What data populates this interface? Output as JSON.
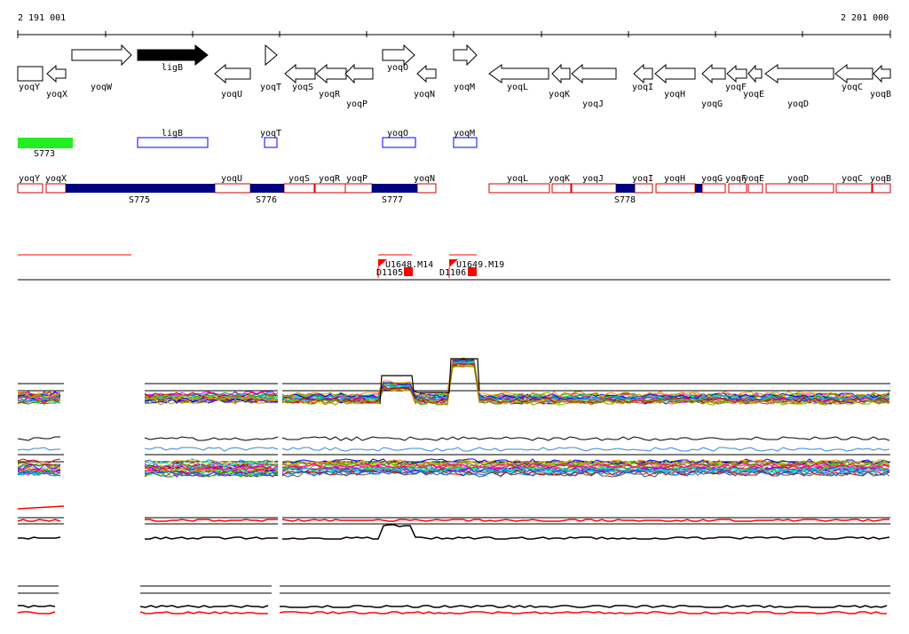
{
  "ruler": {
    "start_label": "2 191 001",
    "end_label": "2 201 000"
  },
  "colors": {
    "gene_outline": "#000000",
    "gene_selected": "#000000",
    "operon_blue": "#000080",
    "feature_blue": "#0000ff",
    "segment_red": "#d00000",
    "green_block": "#22ee22",
    "bright_red": "#ff0000"
  },
  "genes": [
    {
      "name": "yoqY"
    },
    {
      "name": "yoqX"
    },
    {
      "name": "yoqW"
    },
    {
      "name": "ligB"
    },
    {
      "name": "yoqU"
    },
    {
      "name": "yoqT"
    },
    {
      "name": "yoqS"
    },
    {
      "name": "yoqR"
    },
    {
      "name": "yoqP"
    },
    {
      "name": "yoqO"
    },
    {
      "name": "yoqN"
    },
    {
      "name": "yoqM"
    },
    {
      "name": "yoqL"
    },
    {
      "name": "yoqK"
    },
    {
      "name": "yoqJ"
    },
    {
      "name": "yoqI"
    },
    {
      "name": "yoqH"
    },
    {
      "name": "yoqG"
    },
    {
      "name": "yoqF"
    },
    {
      "name": "yoqE"
    },
    {
      "name": "yoqD"
    },
    {
      "name": "yoqC"
    },
    {
      "name": "yoqB"
    }
  ],
  "features": {
    "green": {
      "label": "S773"
    },
    "blue_boxes": [
      {
        "label": "ligB"
      },
      {
        "label": "yoqT"
      },
      {
        "label": "yoqO"
      },
      {
        "label": "yoqM"
      }
    ]
  },
  "segments": {
    "labels": [
      "yoqY",
      "yoqX",
      "yoqU",
      "yoqS",
      "yoqR",
      "yoqP",
      "yoqN",
      "yoqL",
      "yoqK",
      "yoqJ",
      "yoqI",
      "yoqH",
      "yoqG",
      "yoqF",
      "yoqE",
      "yoqD",
      "yoqC",
      "yoqB"
    ],
    "operons": [
      {
        "label": "S775"
      },
      {
        "label": "S776"
      },
      {
        "label": "S777"
      },
      {
        "label": "S778"
      }
    ]
  },
  "probes": {
    "p1": {
      "label": "U1648.M14",
      "sub": "D1105"
    },
    "p2": {
      "label": "U1649.M19",
      "sub": "D1106"
    }
  }
}
